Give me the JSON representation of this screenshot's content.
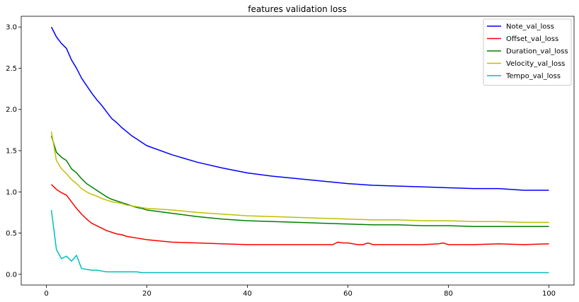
{
  "chart_data": {
    "type": "line",
    "title": "features validation loss",
    "xlabel": "",
    "ylabel": "",
    "xlim": [
      -5,
      105
    ],
    "ylim": [
      -0.13,
      3.13
    ],
    "x_ticks": [
      0,
      20,
      40,
      60,
      80,
      100
    ],
    "y_ticks": [
      0.0,
      0.5,
      1.0,
      1.5,
      2.0,
      2.5,
      3.0
    ],
    "x_tick_labels": [
      "0",
      "20",
      "40",
      "60",
      "80",
      "100"
    ],
    "y_tick_labels": [
      "0.0",
      "0.5",
      "1.0",
      "1.5",
      "2.0",
      "2.5",
      "3.0"
    ],
    "grid": false,
    "legend_position": "top-right",
    "series": [
      {
        "name": "Note_val_loss",
        "color": "#0000ff",
        "x": [
          1,
          2,
          3,
          4,
          5,
          6,
          7,
          8,
          9,
          10,
          11,
          12,
          13,
          14,
          15,
          16,
          17,
          18,
          19,
          20,
          25,
          30,
          35,
          40,
          45,
          50,
          55,
          60,
          65,
          70,
          75,
          80,
          85,
          90,
          95,
          100
        ],
        "y": [
          3.0,
          2.88,
          2.8,
          2.74,
          2.6,
          2.5,
          2.38,
          2.29,
          2.2,
          2.12,
          2.05,
          1.97,
          1.89,
          1.84,
          1.78,
          1.73,
          1.68,
          1.64,
          1.6,
          1.56,
          1.45,
          1.36,
          1.29,
          1.23,
          1.19,
          1.16,
          1.13,
          1.1,
          1.08,
          1.07,
          1.06,
          1.05,
          1.04,
          1.04,
          1.02,
          1.02
        ]
      },
      {
        "name": "Offset_val_loss",
        "color": "#ff0000",
        "x": [
          1,
          2,
          3,
          4,
          5,
          6,
          7,
          8,
          9,
          10,
          11,
          12,
          13,
          14,
          15,
          16,
          17,
          18,
          19,
          20,
          25,
          30,
          35,
          40,
          45,
          50,
          55,
          57,
          58,
          59,
          60,
          61,
          62,
          63,
          64,
          65,
          70,
          75,
          78,
          79,
          80,
          85,
          90,
          95,
          100
        ],
        "y": [
          1.09,
          1.03,
          0.99,
          0.96,
          0.88,
          0.8,
          0.73,
          0.67,
          0.62,
          0.59,
          0.56,
          0.53,
          0.51,
          0.49,
          0.48,
          0.46,
          0.45,
          0.44,
          0.43,
          0.42,
          0.39,
          0.38,
          0.37,
          0.36,
          0.36,
          0.36,
          0.36,
          0.36,
          0.39,
          0.38,
          0.38,
          0.37,
          0.36,
          0.36,
          0.38,
          0.36,
          0.36,
          0.36,
          0.37,
          0.38,
          0.36,
          0.36,
          0.37,
          0.36,
          0.37
        ]
      },
      {
        "name": "Duration_val_loss",
        "color": "#008000",
        "x": [
          1,
          2,
          3,
          4,
          5,
          6,
          7,
          8,
          9,
          10,
          11,
          12,
          13,
          14,
          15,
          16,
          17,
          18,
          19,
          20,
          25,
          30,
          35,
          40,
          45,
          50,
          55,
          60,
          65,
          70,
          75,
          80,
          85,
          90,
          95,
          100
        ],
        "y": [
          1.68,
          1.48,
          1.42,
          1.38,
          1.28,
          1.23,
          1.16,
          1.1,
          1.06,
          1.02,
          0.98,
          0.94,
          0.91,
          0.89,
          0.87,
          0.85,
          0.83,
          0.81,
          0.8,
          0.78,
          0.74,
          0.7,
          0.67,
          0.65,
          0.64,
          0.63,
          0.62,
          0.61,
          0.6,
          0.6,
          0.59,
          0.59,
          0.58,
          0.58,
          0.58,
          0.58
        ]
      },
      {
        "name": "Velocity_val_loss",
        "color": "#bfbf00",
        "x": [
          1,
          2,
          3,
          4,
          5,
          6,
          7,
          8,
          9,
          10,
          11,
          12,
          13,
          14,
          15,
          16,
          17,
          18,
          19,
          20,
          25,
          30,
          35,
          40,
          45,
          50,
          55,
          60,
          65,
          70,
          75,
          80,
          85,
          90,
          95,
          100
        ],
        "y": [
          1.73,
          1.38,
          1.28,
          1.22,
          1.15,
          1.1,
          1.04,
          1.0,
          0.97,
          0.95,
          0.92,
          0.9,
          0.88,
          0.87,
          0.86,
          0.84,
          0.83,
          0.82,
          0.81,
          0.8,
          0.78,
          0.75,
          0.73,
          0.71,
          0.7,
          0.69,
          0.68,
          0.67,
          0.66,
          0.66,
          0.65,
          0.65,
          0.64,
          0.64,
          0.63,
          0.63
        ]
      },
      {
        "name": "Tempo_val_loss",
        "color": "#00bfbf",
        "x": [
          1,
          2,
          3,
          4,
          5,
          6,
          7,
          8,
          9,
          10,
          11,
          12,
          13,
          14,
          15,
          16,
          17,
          18,
          19,
          20,
          25,
          30,
          35,
          40,
          45,
          50,
          55,
          60,
          65,
          70,
          75,
          80,
          85,
          90,
          95,
          100
        ],
        "y": [
          0.78,
          0.3,
          0.19,
          0.22,
          0.16,
          0.23,
          0.07,
          0.06,
          0.05,
          0.05,
          0.04,
          0.03,
          0.03,
          0.03,
          0.03,
          0.03,
          0.03,
          0.03,
          0.02,
          0.02,
          0.02,
          0.02,
          0.02,
          0.02,
          0.02,
          0.02,
          0.02,
          0.02,
          0.02,
          0.02,
          0.02,
          0.02,
          0.02,
          0.02,
          0.02,
          0.02
        ]
      }
    ]
  }
}
